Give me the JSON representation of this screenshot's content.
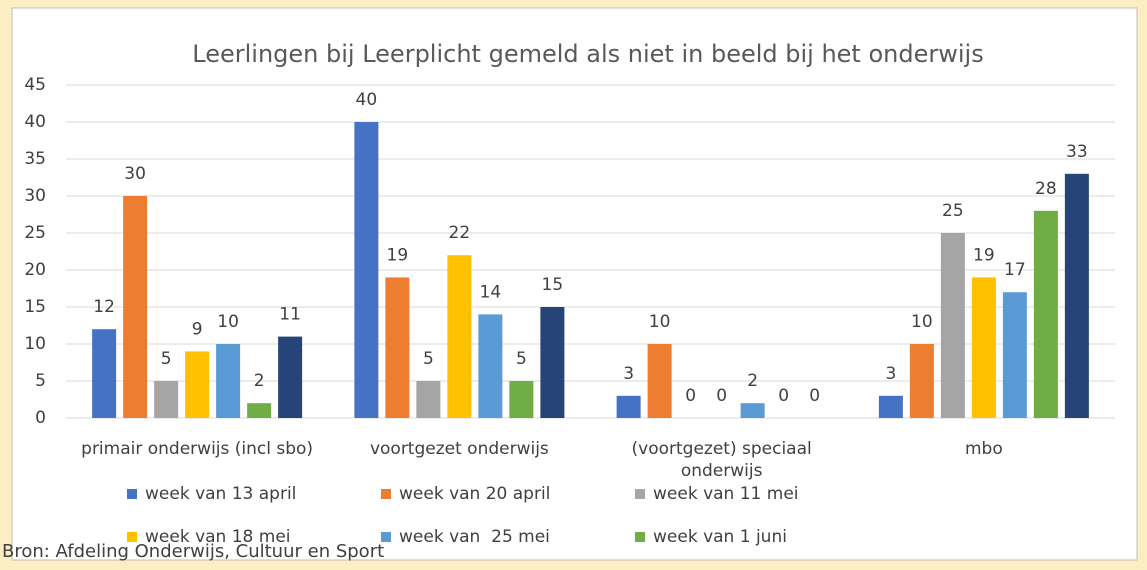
{
  "chart_data": {
    "type": "bar",
    "title": "Leerlingen bij Leerplicht gemeld als niet in beeld bij het onderwijs",
    "categories": [
      "primair onderwijs (incl sbo)",
      "voortgezet onderwijs",
      "(voortgezet) speciaal onderwijs",
      "mbo"
    ],
    "series": [
      {
        "name": "week van 13 april",
        "color": "#4472c4",
        "values": [
          12,
          40,
          3,
          3
        ]
      },
      {
        "name": "week van 20 april",
        "color": "#ed7d31",
        "values": [
          30,
          19,
          10,
          10
        ]
      },
      {
        "name": "week van 11 mei",
        "color": "#a5a5a5",
        "values": [
          5,
          5,
          0,
          25
        ]
      },
      {
        "name": "week van 18 mei",
        "color": "#ffc000",
        "values": [
          9,
          22,
          0,
          19
        ]
      },
      {
        "name": "week van  25 mei",
        "color": "#5b9bd5",
        "values": [
          10,
          14,
          2,
          17
        ]
      },
      {
        "name": "week van 1 juni",
        "color": "#70ad47",
        "values": [
          2,
          5,
          0,
          28
        ]
      },
      {
        "color": "#264478",
        "values": [
          11,
          15,
          0,
          33
        ]
      }
    ],
    "ylim": [
      0,
      45
    ],
    "yticks": [
      0,
      5,
      10,
      15,
      20,
      25,
      30,
      35,
      40,
      45
    ],
    "grid": true,
    "source": "Bron: Afdeling Onderwijs, Cultuur en Sport"
  }
}
